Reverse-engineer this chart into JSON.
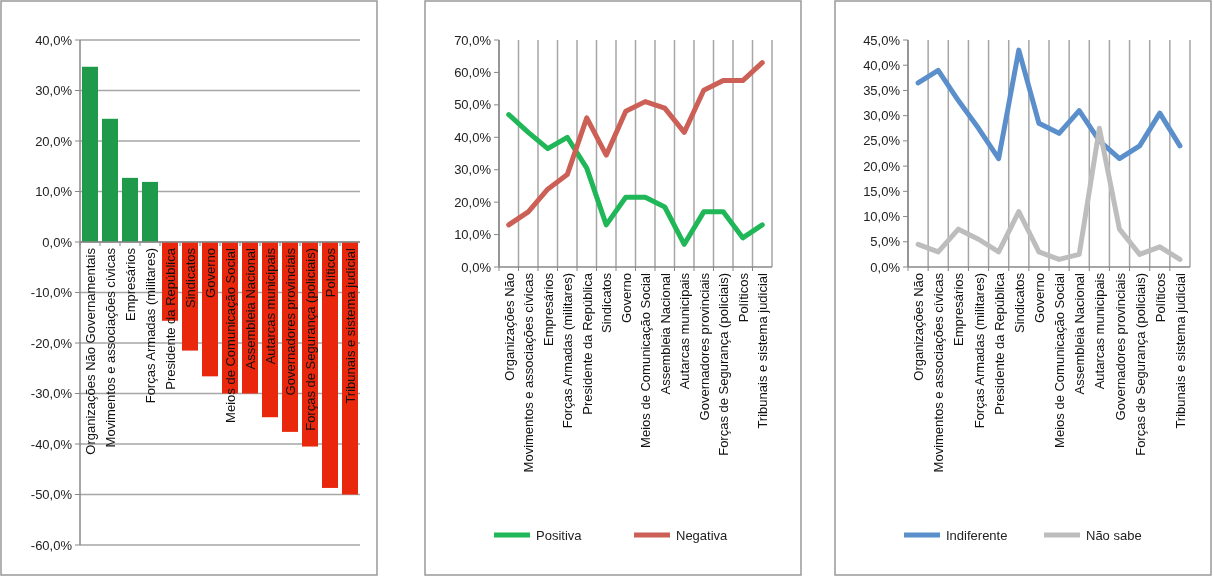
{
  "chart_data": [
    {
      "type": "bar",
      "categories": [
        "Organizações Não Governamentais",
        "Movimentos e associações cívicas",
        "Empresários",
        "Forças Armadas (militares)",
        "Presidente da República",
        "Sindicatos",
        "Governo",
        "Meios de Comunicação Social",
        "Assembleia Nacional",
        "Autarcas municipais",
        "Governadores provinciais",
        "Forças de Segurança (policiais)",
        "Políticos",
        "Tribunais e sistema judicial"
      ],
      "values": [
        34.7,
        24.4,
        12.7,
        11.9,
        -15.6,
        -21.5,
        -26.6,
        -30,
        -30,
        -34.7,
        -37.6,
        -40.5,
        -48.7,
        -50
      ],
      "colors": [
        "#1e9a4a",
        "#1e9a4a",
        "#1e9a4a",
        "#1e9a4a",
        "#e8270c",
        "#e8270c",
        "#e8270c",
        "#e8270c",
        "#e8270c",
        "#e8270c",
        "#e8270c",
        "#e8270c",
        "#e8270c",
        "#e8270c"
      ],
      "ylim": [
        -60,
        40
      ],
      "yticks": [
        {
          "value": -60,
          "label": "-60,0%"
        },
        {
          "value": -50,
          "label": "-50,0%"
        },
        {
          "value": -40,
          "label": "-40,0%"
        },
        {
          "value": -30,
          "label": "-30,0%"
        },
        {
          "value": -20,
          "label": "-20,0%"
        },
        {
          "value": -10,
          "label": "-10,0%"
        },
        {
          "value": 0,
          "label": "0,0%"
        },
        {
          "value": 10,
          "label": "10,0%"
        },
        {
          "value": 20,
          "label": "20,0%"
        },
        {
          "value": 30,
          "label": "30,0%"
        },
        {
          "value": 40,
          "label": "40,0%"
        }
      ],
      "grid": "y",
      "legend": false
    },
    {
      "type": "line",
      "categories": [
        "Organizações Não",
        "Movimentos e associações cívicas",
        "Empresários",
        "Forças Armadas (militares)",
        "Presidente da República",
        "Sindicatos",
        "Governo",
        "Meios de Comunicação Social",
        "Assembleia Nacional",
        "Autarcas municipais",
        "Governadores provinciais",
        "Forças de Segurança (policiais)",
        "Políticos",
        "Tribunais e sistema judicial"
      ],
      "series": [
        {
          "name": "Positiva",
          "color": "#1fb757",
          "values": [
            47,
            41.5,
            36.5,
            40,
            30.5,
            13,
            21.5,
            21.5,
            18.5,
            7,
            17,
            17,
            9,
            13
          ]
        },
        {
          "name": "Negativa",
          "color": "#cc5f56",
          "values": [
            13,
            17,
            24,
            28.5,
            46,
            34.5,
            48,
            51,
            49,
            41.5,
            54.5,
            57.5,
            57.5,
            63
          ]
        }
      ],
      "ylim": [
        0,
        70
      ],
      "yticks": [
        {
          "value": 0,
          "label": "0,0%"
        },
        {
          "value": 10,
          "label": "10,0%"
        },
        {
          "value": 20,
          "label": "20,0%"
        },
        {
          "value": 30,
          "label": "30,0%"
        },
        {
          "value": 40,
          "label": "40,0%"
        },
        {
          "value": 50,
          "label": "50,0%"
        },
        {
          "value": 60,
          "label": "60,0%"
        },
        {
          "value": 70,
          "label": "70,0%"
        }
      ],
      "grid": "x",
      "legend": "bottom",
      "marker": "none",
      "line_style": "solid"
    },
    {
      "type": "line",
      "categories": [
        "Organizações Não",
        "Movimentos e associações cívicas",
        "Empresários",
        "Forças Armadas (militares)",
        "Presidente da República",
        "Sindicatos",
        "Governo",
        "Meios de Comunicação Social",
        "Assembleia Nacional",
        "Autarcas municipais",
        "Governadores provinciais",
        "Forças de Segurança (policiais)",
        "Políticos",
        "Tribunais e sistema judicial"
      ],
      "series": [
        {
          "name": "Indiferente",
          "color": "#5b8fcb",
          "values": [
            36.5,
            39,
            33,
            27.5,
            21.5,
            43,
            28.5,
            26.5,
            31,
            25,
            21.5,
            24,
            30.5,
            24
          ]
        },
        {
          "name": "Não sabe",
          "color": "#bdbdbd",
          "values": [
            4.5,
            3,
            7.5,
            5.5,
            3,
            11,
            3,
            1.5,
            2.5,
            27.5,
            7.5,
            2.5,
            4,
            1.5
          ]
        }
      ],
      "ylim": [
        0,
        45
      ],
      "yticks": [
        {
          "value": 0,
          "label": "0,0%"
        },
        {
          "value": 5,
          "label": "5,0%"
        },
        {
          "value": 10,
          "label": "10,0%"
        },
        {
          "value": 15,
          "label": "15,0%"
        },
        {
          "value": 20,
          "label": "20,0%"
        },
        {
          "value": 25,
          "label": "25,0%"
        },
        {
          "value": 30,
          "label": "30,0%"
        },
        {
          "value": 35,
          "label": "35,0%"
        },
        {
          "value": 40,
          "label": "40,0%"
        },
        {
          "value": 45,
          "label": "45,0%"
        }
      ],
      "grid": "x",
      "legend": "bottom",
      "marker": "none",
      "line_style": "solid"
    }
  ]
}
